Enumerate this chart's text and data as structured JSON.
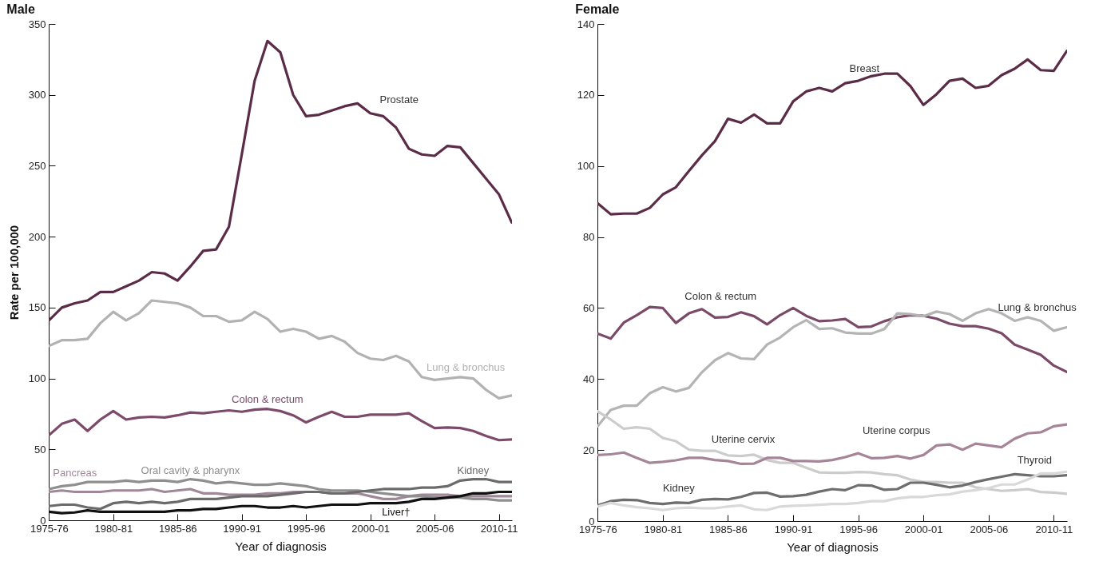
{
  "chart_data": [
    {
      "type": "line",
      "title": "Male",
      "xlabel": "Year of diagnosis",
      "ylabel": "Rate per 100,000",
      "categories": [
        "1975-76",
        null,
        null,
        null,
        null,
        "1980-81",
        null,
        null,
        null,
        null,
        "1985-86",
        null,
        null,
        null,
        null,
        "1990-91",
        null,
        null,
        null,
        null,
        "1995-96",
        null,
        null,
        null,
        null,
        "2000-01",
        null,
        null,
        null,
        null,
        "2005-06",
        null,
        null,
        null,
        null,
        "2010-11",
        null
      ],
      "ylim": [
        0,
        350
      ],
      "yticks": [
        0,
        50,
        100,
        150,
        200,
        250,
        300,
        350
      ],
      "series": [
        {
          "name": "Prostate",
          "color": "#5b2c48",
          "values": [
            141,
            150,
            153,
            155,
            161,
            161,
            165,
            169,
            175,
            174,
            169,
            179,
            190,
            191,
            207,
            258,
            310,
            338,
            330,
            300,
            285,
            286,
            289,
            292,
            294,
            287,
            285,
            277,
            262,
            258,
            257,
            264,
            263,
            252,
            241,
            230,
            210
          ]
        },
        {
          "name": "Lung & bronchus",
          "color": "#b2b2b2",
          "values": [
            123,
            127,
            127,
            128,
            139,
            147,
            141,
            146,
            155,
            154,
            153,
            150,
            144,
            144,
            140,
            141,
            147,
            142,
            133,
            135,
            133,
            128,
            130,
            126,
            118,
            114,
            113,
            116,
            112,
            101,
            99,
            100,
            101,
            100,
            92,
            86,
            88
          ]
        },
        {
          "name": "Colon & rectum",
          "color": "#7c4a6a",
          "values": [
            60,
            68,
            71,
            63,
            71,
            77,
            71,
            72.5,
            73,
            72.5,
            74,
            76,
            75.5,
            76.5,
            77.5,
            76.5,
            78,
            78.5,
            77,
            74,
            69,
            73,
            76.5,
            73,
            73,
            74.5,
            74.5,
            74.5,
            75.5,
            70,
            65,
            65.5,
            65,
            63,
            59.5,
            56.5,
            57
          ]
        },
        {
          "name": "Pancreas",
          "color": "#a08898",
          "values": [
            20,
            21,
            20,
            20,
            20,
            21,
            21,
            21,
            22,
            20,
            21,
            22,
            19,
            19,
            18,
            18,
            18,
            19,
            19,
            20,
            20,
            20,
            19,
            19,
            19,
            17,
            15,
            15,
            17,
            18,
            18,
            18,
            17,
            17,
            17,
            17,
            17
          ]
        },
        {
          "name": "Oral cavity & pharynx",
          "color": "#8f8f8f",
          "values": [
            22,
            24,
            25,
            27,
            27,
            27,
            28,
            27,
            28,
            28,
            27,
            29,
            28,
            26,
            27,
            26,
            25,
            25,
            26,
            25,
            24,
            22,
            21,
            21,
            21,
            20,
            19,
            18,
            17,
            17,
            16,
            16,
            16,
            15,
            15,
            14,
            14
          ]
        },
        {
          "name": "Liver†",
          "color": "#111111",
          "values": [
            6,
            5,
            5.5,
            7,
            6,
            6,
            6,
            6,
            6,
            6,
            7,
            7,
            8,
            8,
            9,
            10,
            10,
            9,
            9,
            10,
            9,
            10,
            11,
            11,
            11,
            12,
            12,
            12,
            13,
            15,
            15,
            16,
            17,
            19,
            19,
            20,
            20
          ]
        },
        {
          "name": "Kidney",
          "color": "#6b6b6b",
          "values": [
            10,
            11,
            11,
            9,
            8,
            12,
            13,
            12,
            13,
            12,
            13,
            15,
            15,
            15,
            16,
            17,
            17,
            17,
            18,
            19,
            20,
            20,
            19,
            19,
            20,
            21,
            22,
            22,
            22,
            23,
            23,
            24,
            28,
            29,
            29,
            27,
            27
          ]
        }
      ]
    },
    {
      "type": "line",
      "title": "Female",
      "xlabel": "Year of diagnosis",
      "categories": [
        "1975-76",
        null,
        null,
        null,
        null,
        "1980-81",
        null,
        null,
        null,
        null,
        "1985-86",
        null,
        null,
        null,
        null,
        "1990-91",
        null,
        null,
        null,
        null,
        "1995-96",
        null,
        null,
        null,
        null,
        "2000-01",
        null,
        null,
        null,
        null,
        "2005-06",
        null,
        null,
        null,
        null,
        "2010-11",
        null
      ],
      "ylim": [
        0,
        140
      ],
      "yticks": [
        0,
        20,
        40,
        60,
        80,
        100,
        120,
        140
      ],
      "series": [
        {
          "name": "Breast",
          "color": "#5b2c48",
          "values": [
            89.5,
            86.4,
            86.6,
            86.6,
            88.2,
            92,
            94,
            98.6,
            103,
            107,
            113.3,
            112.2,
            114.5,
            112,
            112,
            118.2,
            121,
            122,
            121,
            123.3,
            124,
            125.3,
            126,
            126,
            122.5,
            117.2,
            120.2,
            124,
            124.6,
            122,
            122.6,
            125.6,
            127.4,
            130,
            127,
            126.8,
            132.4
          ]
        },
        {
          "name": "Colon & rectum",
          "color": "#7a4a68",
          "values": [
            52.8,
            51.4,
            55.9,
            58,
            60.3,
            60,
            55.8,
            58.5,
            59.7,
            57.3,
            57.5,
            58.8,
            57.7,
            55.4,
            58,
            60,
            57.8,
            56.3,
            56.5,
            56.9,
            54.6,
            54.8,
            56.3,
            57.4,
            58,
            57.8,
            57,
            55.6,
            54.9,
            54.9,
            54.2,
            52.9,
            49.7,
            48.3,
            46.8,
            43.8,
            42
          ]
        },
        {
          "name": "Lung & bronchus",
          "color": "#b4b4b4",
          "values": [
            26.7,
            31.3,
            32.5,
            32.5,
            36,
            37.7,
            36.5,
            37.5,
            41.9,
            45.3,
            47.3,
            45.8,
            45.6,
            49.7,
            51.7,
            54.6,
            56.6,
            54.1,
            54.3,
            53.1,
            52.8,
            52.8,
            54.1,
            58.5,
            58.3,
            57.7,
            59,
            58.3,
            56.4,
            58.5,
            59.7,
            58.5,
            56.4,
            57.4,
            56.4,
            53.6,
            54.6
          ]
        },
        {
          "name": "Uterine cervix",
          "color": "#cccccc",
          "values": [
            30.9,
            28.6,
            26,
            26.4,
            26,
            23.4,
            22.5,
            20.1,
            19.8,
            19.8,
            18.5,
            18.3,
            18.7,
            17.2,
            16.4,
            16.4,
            15,
            13.7,
            13.6,
            13.6,
            13.8,
            13.7,
            13.2,
            12.9,
            11.7,
            11,
            11,
            10.8,
            10.8,
            9.5,
            9,
            8.5,
            8.7,
            9,
            8.2,
            8,
            7.7
          ]
        },
        {
          "name": "Uterine corpus",
          "color": "#a58597",
          "values": [
            18.6,
            18.8,
            19.3,
            17.8,
            16.4,
            16.7,
            17.1,
            17.8,
            17.8,
            17.2,
            16.9,
            16.1,
            16.2,
            17.8,
            17.8,
            16.9,
            16.9,
            16.8,
            17.2,
            18,
            19.1,
            17.7,
            17.8,
            18.3,
            17.6,
            18.6,
            21.3,
            21.6,
            20.1,
            21.8,
            21.3,
            20.8,
            23.2,
            24.7,
            25,
            26.7,
            27.2
          ]
        },
        {
          "name": "Kidney",
          "color": "#6e6e6e",
          "values": [
            4.4,
            5.6,
            6,
            5.9,
            5.1,
            4.8,
            5.2,
            5.1,
            6,
            6.2,
            6.1,
            6.8,
            7.9,
            8,
            6.9,
            7,
            7.4,
            8.3,
            9,
            8.7,
            10.1,
            10,
            8.8,
            9,
            10.8,
            10.8,
            10.2,
            9.5,
            10,
            11,
            11.8,
            12.5,
            13.2,
            12.9,
            12.6,
            12.6,
            12.9
          ]
        },
        {
          "name": "Thyroid",
          "color": "#d9d9d9",
          "values": [
            4.1,
            5.1,
            4.4,
            3.9,
            3.6,
            3.1,
            3.6,
            3.8,
            3.6,
            3.6,
            4.1,
            4.4,
            3.3,
            3.1,
            4.1,
            4.3,
            4.4,
            4.6,
            4.8,
            4.8,
            5.1,
            5.6,
            5.6,
            6.4,
            6.8,
            6.8,
            7.3,
            7.5,
            8.3,
            8.7,
            9.3,
            10.3,
            10.3,
            11.7,
            13.4,
            13.4,
            13.9
          ]
        }
      ]
    }
  ]
}
